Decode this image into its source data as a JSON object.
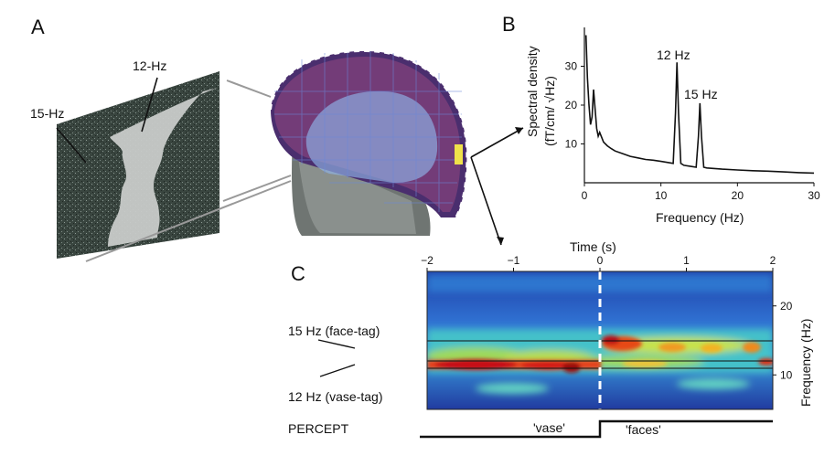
{
  "panels": {
    "a": "A",
    "b": "B",
    "c": "C"
  },
  "panel_a": {
    "label_15": "15-Hz",
    "label_12": "12-Hz"
  },
  "chart_data": [
    {
      "type": "line",
      "title": "",
      "xlabel": "Frequency (Hz)",
      "ylabel": "Spectral density (fT/cm/ √Hz)",
      "xlim": [
        0,
        30
      ],
      "ylim": [
        0,
        40
      ],
      "xticks": [
        0,
        10,
        20,
        30
      ],
      "yticks": [
        10,
        20,
        30
      ],
      "x": [
        0.2,
        0.4,
        0.6,
        0.8,
        1.0,
        1.2,
        1.4,
        1.6,
        1.8,
        2,
        2.5,
        3,
        3.5,
        4,
        5,
        6,
        7,
        8,
        9,
        10,
        11,
        11.6,
        11.9,
        12.1,
        12.3,
        12.6,
        13,
        14,
        14.6,
        14.9,
        15.1,
        15.3,
        15.6,
        16,
        18,
        20,
        22,
        24,
        26,
        28,
        30
      ],
      "values": [
        38,
        27,
        20,
        15,
        17,
        24,
        19,
        14,
        12,
        13,
        10.5,
        9.5,
        8.8,
        8.2,
        7.5,
        6.8,
        6.4,
        6,
        5.8,
        5.5,
        5.2,
        5,
        18,
        31,
        18,
        5,
        4.5,
        4.2,
        4,
        12,
        20.5,
        12,
        4,
        3.8,
        3.5,
        3.3,
        3.1,
        3,
        2.8,
        2.6,
        2.5
      ],
      "annotations": [
        {
          "text": "12 Hz",
          "x": 12.2
        },
        {
          "text": "15 Hz",
          "x": 15.1
        }
      ]
    },
    {
      "type": "heatmap",
      "title": "",
      "xlabel": "Time (s)",
      "ylabel": "Frequency (Hz)",
      "xlim": [
        -2,
        2
      ],
      "ylim": [
        5,
        25
      ],
      "xticks": [
        -2,
        -1,
        0,
        1,
        2
      ],
      "yticks": [
        10,
        20
      ],
      "annotations": [
        {
          "text": "15 Hz (face-tag)",
          "y": 15
        },
        {
          "text": "12 Hz (vase-tag)",
          "y": 12
        }
      ],
      "percept": {
        "label": "PERCEPT",
        "before": "'vase'",
        "after": "'faces'",
        "switch_time": 0
      }
    }
  ],
  "tick_labels": {
    "b_x": [
      "0",
      "10",
      "20",
      "30"
    ],
    "b_y": [
      "10",
      "20",
      "30"
    ],
    "c_x": [
      "−2",
      "−1",
      "0",
      "1",
      "2"
    ],
    "c_y": [
      "10",
      "20"
    ]
  },
  "text": {
    "b_ylabel_1": "Spectral density",
    "b_ylabel_2": "(fT/cm/ √Hz)",
    "b_xlabel": "Frequency (Hz)",
    "b_ann_12": "12 Hz",
    "b_ann_15": "15 Hz",
    "c_xlabel": "Time (s)",
    "c_ylabel": "Frequency (Hz)",
    "c_face": "15 Hz (face-tag)",
    "c_vase": "12 Hz (vase-tag)",
    "percept": "PERCEPT",
    "vase": "'vase'",
    "faces": "'faces'"
  }
}
